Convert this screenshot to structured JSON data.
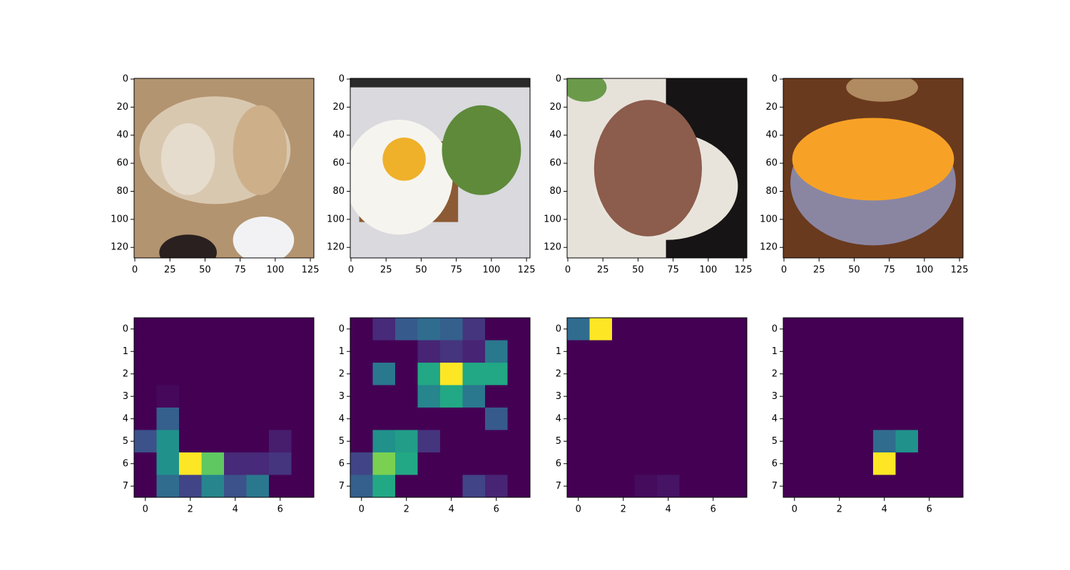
{
  "chart_data": [
    {
      "type": "image",
      "xlim": [
        -0.5,
        127.5
      ],
      "ylim": [
        127.5,
        -0.5
      ],
      "xticks": [
        0,
        25,
        50,
        75,
        100,
        125
      ],
      "yticks": [
        0,
        20,
        40,
        60,
        80,
        100,
        120
      ]
    },
    {
      "type": "image",
      "xlim": [
        -0.5,
        127.5
      ],
      "ylim": [
        127.5,
        -0.5
      ],
      "xticks": [
        0,
        25,
        50,
        75,
        100,
        125
      ],
      "yticks": [
        0,
        20,
        40,
        60,
        80,
        100,
        120
      ]
    },
    {
      "type": "image",
      "xlim": [
        -0.5,
        127.5
      ],
      "ylim": [
        127.5,
        -0.5
      ],
      "xticks": [
        0,
        25,
        50,
        75,
        100,
        125
      ],
      "yticks": [
        0,
        20,
        40,
        60,
        80,
        100,
        120
      ]
    },
    {
      "type": "image",
      "xlim": [
        -0.5,
        127.5
      ],
      "ylim": [
        127.5,
        -0.5
      ],
      "xticks": [
        0,
        25,
        50,
        75,
        100,
        125
      ],
      "yticks": [
        0,
        20,
        40,
        60,
        80,
        100,
        120
      ]
    },
    {
      "type": "heatmap",
      "colormap": "viridis",
      "clim": [
        0,
        1
      ],
      "xlim": [
        -0.5,
        7.5
      ],
      "ylim": [
        7.5,
        -0.5
      ],
      "xticks": [
        0,
        2,
        4,
        6
      ],
      "yticks": [
        0,
        1,
        2,
        3,
        4,
        5,
        6,
        7
      ],
      "values": [
        [
          0,
          0,
          0,
          0,
          0,
          0,
          0,
          0
        ],
        [
          0,
          0,
          0,
          0,
          0,
          0,
          0,
          0
        ],
        [
          0,
          0,
          0,
          0,
          0,
          0,
          0,
          0
        ],
        [
          0,
          0.02,
          0,
          0,
          0,
          0,
          0,
          0
        ],
        [
          0,
          0.3,
          0,
          0,
          0,
          0,
          0,
          0
        ],
        [
          0.25,
          0.5,
          0,
          0,
          0,
          0,
          0.08,
          0
        ],
        [
          0,
          0.5,
          1,
          0.75,
          0.12,
          0.12,
          0.15,
          0
        ],
        [
          0,
          0.35,
          0.2,
          0.45,
          0.25,
          0.4,
          0,
          0
        ]
      ]
    },
    {
      "type": "heatmap",
      "colormap": "viridis",
      "clim": [
        0,
        1
      ],
      "xlim": [
        -0.5,
        7.5
      ],
      "ylim": [
        7.5,
        -0.5
      ],
      "xticks": [
        0,
        2,
        4,
        6
      ],
      "yticks": [
        0,
        1,
        2,
        3,
        4,
        5,
        6,
        7
      ],
      "values": [
        [
          0,
          0.12,
          0.28,
          0.35,
          0.3,
          0.15,
          0,
          0
        ],
        [
          0,
          0,
          0,
          0.1,
          0.15,
          0.1,
          0.4,
          0
        ],
        [
          0,
          0.4,
          0,
          0.6,
          1,
          0.6,
          0.6,
          0
        ],
        [
          0,
          0,
          0,
          0.45,
          0.6,
          0.4,
          0,
          0
        ],
        [
          0,
          0,
          0,
          0,
          0,
          0,
          0.28,
          0
        ],
        [
          0,
          0.5,
          0.55,
          0.15,
          0,
          0,
          0,
          0
        ],
        [
          0.2,
          0.8,
          0.6,
          0,
          0,
          0,
          0,
          0
        ],
        [
          0.3,
          0.6,
          0,
          0,
          0,
          0.2,
          0.1,
          0
        ]
      ]
    },
    {
      "type": "heatmap",
      "colormap": "viridis",
      "clim": [
        0,
        1
      ],
      "xlim": [
        -0.5,
        7.5
      ],
      "ylim": [
        7.5,
        -0.5
      ],
      "xticks": [
        0,
        2,
        4,
        6
      ],
      "yticks": [
        0,
        1,
        2,
        3,
        4,
        5,
        6,
        7
      ],
      "values": [
        [
          0.35,
          1,
          0,
          0,
          0,
          0,
          0,
          0
        ],
        [
          0,
          0,
          0,
          0,
          0,
          0,
          0,
          0
        ],
        [
          0,
          0,
          0,
          0,
          0,
          0,
          0,
          0
        ],
        [
          0,
          0,
          0,
          0,
          0,
          0,
          0,
          0
        ],
        [
          0,
          0,
          0,
          0,
          0,
          0,
          0,
          0
        ],
        [
          0,
          0,
          0,
          0,
          0,
          0,
          0,
          0
        ],
        [
          0,
          0,
          0,
          0,
          0,
          0,
          0,
          0
        ],
        [
          0,
          0,
          0,
          0.03,
          0.05,
          0,
          0,
          0
        ]
      ]
    },
    {
      "type": "heatmap",
      "colormap": "viridis",
      "clim": [
        0,
        1
      ],
      "xlim": [
        -0.5,
        7.5
      ],
      "ylim": [
        7.5,
        -0.5
      ],
      "xticks": [
        0,
        2,
        4,
        6
      ],
      "yticks": [
        0,
        1,
        2,
        3,
        4,
        5,
        6,
        7
      ],
      "values": [
        [
          0,
          0,
          0,
          0,
          0,
          0,
          0,
          0
        ],
        [
          0,
          0,
          0,
          0,
          0,
          0,
          0,
          0
        ],
        [
          0,
          0,
          0,
          0,
          0,
          0,
          0,
          0
        ],
        [
          0,
          0,
          0,
          0,
          0,
          0,
          0,
          0
        ],
        [
          0,
          0,
          0,
          0,
          0,
          0,
          0,
          0
        ],
        [
          0,
          0,
          0,
          0,
          0.35,
          0.5,
          0,
          0
        ],
        [
          0,
          0,
          0,
          0,
          1,
          0,
          0,
          0
        ],
        [
          0,
          0,
          0,
          0,
          0,
          0,
          0,
          0
        ]
      ]
    }
  ]
}
